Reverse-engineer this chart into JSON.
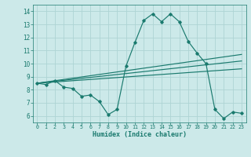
{
  "title": "",
  "xlabel": "Humidex (Indice chaleur)",
  "xlim": [
    -0.5,
    23.5
  ],
  "ylim": [
    5.5,
    14.5
  ],
  "xticks": [
    0,
    1,
    2,
    3,
    4,
    5,
    6,
    7,
    8,
    9,
    10,
    11,
    12,
    13,
    14,
    15,
    16,
    17,
    18,
    19,
    20,
    21,
    22,
    23
  ],
  "yticks": [
    6,
    7,
    8,
    9,
    10,
    11,
    12,
    13,
    14
  ],
  "bg_color": "#cce9e9",
  "grid_color": "#aed4d4",
  "line_color": "#1a7a6e",
  "line1_x": [
    0,
    1,
    2,
    3,
    4,
    5,
    6,
    7,
    8,
    9,
    10,
    11,
    12,
    13,
    14,
    15,
    16,
    17,
    18,
    19,
    20,
    21,
    22,
    23
  ],
  "line1_y": [
    8.5,
    8.4,
    8.7,
    8.2,
    8.1,
    7.5,
    7.6,
    7.1,
    6.1,
    6.5,
    9.8,
    11.6,
    13.3,
    13.8,
    13.2,
    13.8,
    13.2,
    11.7,
    10.8,
    10.0,
    6.5,
    5.8,
    6.3,
    6.2
  ],
  "line2_x": [
    0,
    23
  ],
  "line2_y": [
    8.5,
    10.7
  ],
  "line3_x": [
    0,
    23
  ],
  "line3_y": [
    8.5,
    10.2
  ],
  "line4_x": [
    0,
    23
  ],
  "line4_y": [
    8.5,
    9.6
  ]
}
